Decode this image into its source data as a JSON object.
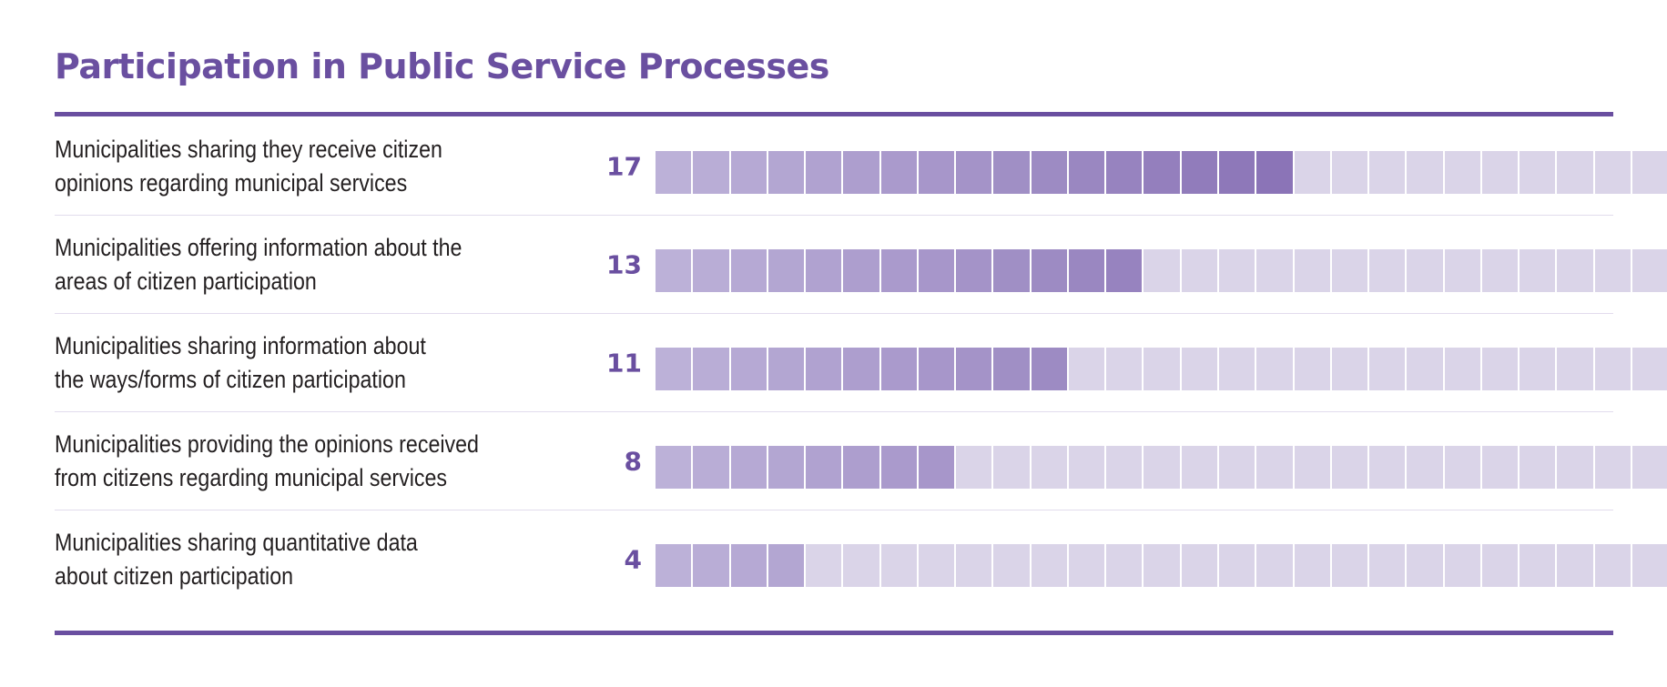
{
  "colors": {
    "accent": "#6a4fa0",
    "filled_start": "#bcb1d8",
    "filled_end": "#8b74b7",
    "empty": "#dad4e8"
  },
  "chart_data": {
    "type": "bar",
    "title": "Participation in Public Service Processes",
    "unit_style": "waffle",
    "max": 27,
    "categories": [
      [
        "Municipalities sharing they receive citizen",
        "opinions regarding municipal services"
      ],
      [
        "Municipalities offering information about the",
        "areas of citizen participation"
      ],
      [
        "Municipalities sharing information about",
        "the ways/forms of citizen participation"
      ],
      [
        "Municipalities providing the opinions received",
        "from citizens regarding municipal services"
      ],
      [
        "Municipalities sharing quantitative data",
        "about citizen participation"
      ]
    ],
    "values": [
      17,
      13,
      11,
      8,
      4
    ],
    "value_labels": [
      "17",
      "13",
      "11",
      "8",
      "4"
    ]
  }
}
